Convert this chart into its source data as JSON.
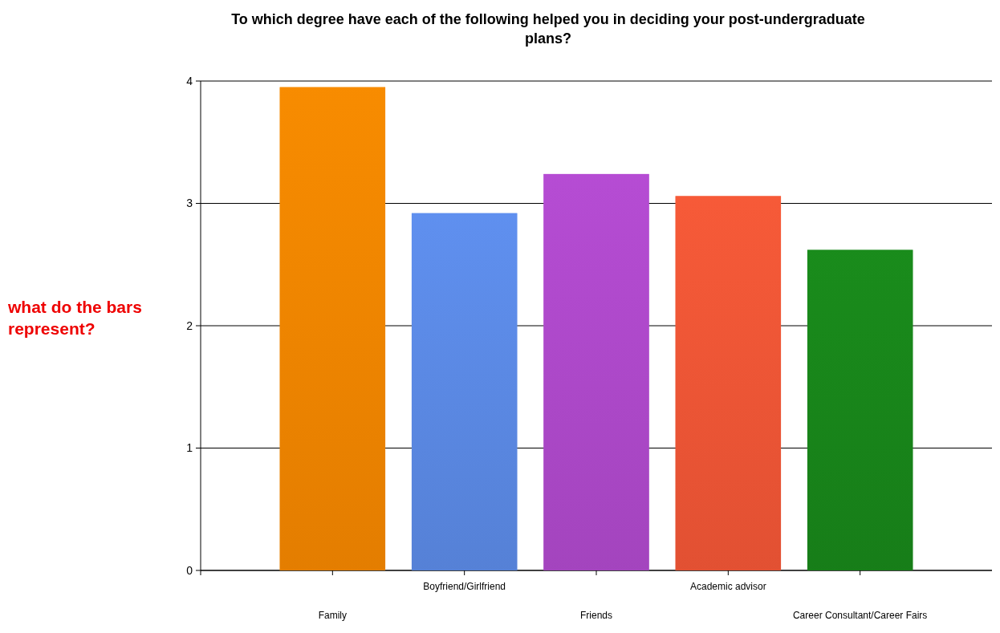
{
  "chart_data": {
    "type": "bar",
    "title": "To which degree have each of the following helped you in deciding your post-undergraduate plans?",
    "categories": [
      "Family",
      "Boyfriend/Girlfriend",
      "Friends",
      "Academic advisor",
      "Career Consultant/Career Fairs"
    ],
    "values": [
      3.95,
      2.92,
      3.24,
      3.06,
      2.62
    ],
    "colors": [
      "#f08400",
      "#5a88e2",
      "#ac48c8",
      "#ee5535",
      "#18841a"
    ],
    "ylim": [
      0,
      4
    ],
    "yticks": [
      0,
      1,
      2,
      3,
      4
    ],
    "grid": "y",
    "annotations": [
      "what do the bars represent?"
    ]
  }
}
